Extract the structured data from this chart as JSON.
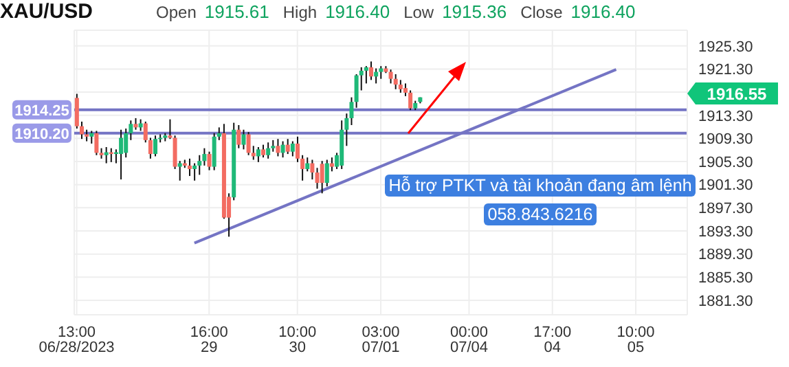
{
  "chart_data": {
    "type": "candlestick",
    "title": "XAU/USD",
    "categories": [
      "13:00\n06/28/2023",
      null,
      null,
      null,
      null,
      null,
      null,
      null,
      null,
      null,
      null,
      null,
      null,
      null,
      null,
      null,
      null,
      null,
      null,
      null,
      null,
      null,
      null,
      null,
      null,
      null,
      null,
      "16:00\n29",
      null,
      null,
      null,
      null,
      null,
      null,
      null,
      null,
      null,
      null,
      null,
      null,
      null,
      null,
      null,
      null,
      null,
      "10:00\n30",
      null,
      null,
      null,
      null,
      null,
      null,
      null,
      null,
      null,
      null,
      null,
      null,
      null,
      null,
      null,
      null,
      "03:00\n07/01",
      null,
      null,
      null,
      null,
      null,
      null,
      null,
      null,
      null,
      null,
      null,
      null,
      null,
      null,
      null,
      null,
      null,
      "00:00\n07/04",
      null,
      null,
      null,
      null,
      null,
      null,
      null,
      null,
      null,
      null,
      null,
      null,
      null,
      null,
      null,
      null,
      "17:00\n04",
      null,
      null,
      null,
      null,
      null,
      null,
      null,
      null,
      null,
      null,
      null,
      null,
      null,
      null,
      null,
      null,
      "10:00\n05",
      null,
      null,
      null,
      null,
      null,
      null,
      null,
      null,
      null,
      null
    ],
    "ohlc": [
      [
        1916.3,
        1917.0,
        1911.0,
        1911.4
      ],
      [
        1911.4,
        1912.2,
        1909.2,
        1910.0
      ],
      [
        1910.0,
        1910.8,
        1908.8,
        1909.6
      ],
      [
        1909.6,
        1910.6,
        1908.4,
        1910.2
      ],
      [
        1910.2,
        1910.6,
        1906.4,
        1906.8
      ],
      [
        1906.8,
        1907.6,
        1905.8,
        1906.4
      ],
      [
        1906.4,
        1907.8,
        1905.0,
        1906.9
      ],
      [
        1906.9,
        1907.6,
        1905.2,
        1906.6
      ],
      [
        1906.6,
        1907.4,
        1905.0,
        1906.9
      ],
      [
        1906.6,
        1910.8,
        1902.2,
        1909.4
      ],
      [
        1906.8,
        1911.0,
        1906.0,
        1910.2
      ],
      [
        1910.2,
        1912.4,
        1909.0,
        1911.8
      ],
      [
        1911.8,
        1912.8,
        1910.8,
        1911.2
      ],
      [
        1911.2,
        1912.6,
        1910.6,
        1911.9
      ],
      [
        1911.9,
        1912.2,
        1908.6,
        1909.0
      ],
      [
        1909.0,
        1909.4,
        1905.8,
        1906.6
      ],
      [
        1906.6,
        1909.8,
        1906.2,
        1909.2
      ],
      [
        1909.2,
        1910.0,
        1908.6,
        1909.4
      ],
      [
        1909.4,
        1910.2,
        1908.8,
        1909.8
      ],
      [
        1909.8,
        1912.6,
        1909.2,
        1909.4
      ],
      [
        1909.4,
        1909.8,
        1904.0,
        1904.4
      ],
      [
        1904.4,
        1905.4,
        1902.0,
        1905.0
      ],
      [
        1905.0,
        1905.6,
        1904.2,
        1904.6
      ],
      [
        1904.6,
        1905.8,
        1902.8,
        1904.0
      ],
      [
        1904.0,
        1905.0,
        1902.0,
        1904.6
      ],
      [
        1904.6,
        1906.4,
        1903.0,
        1905.4
      ],
      [
        1905.4,
        1907.6,
        1904.6,
        1906.6
      ],
      [
        1906.6,
        1907.0,
        1903.8,
        1904.4
      ],
      [
        1904.4,
        1910.2,
        1903.8,
        1909.6
      ],
      [
        1909.6,
        1911.2,
        1909.0,
        1910.2
      ],
      [
        1910.2,
        1911.8,
        1895.4,
        1895.6
      ],
      [
        1899.2,
        1899.8,
        1892.3,
        1895.6
      ],
      [
        1899.1,
        1912.0,
        1898.6,
        1910.8
      ],
      [
        1910.8,
        1911.6,
        1907.6,
        1908.2
      ],
      [
        1908.2,
        1910.8,
        1907.4,
        1910.0
      ],
      [
        1910.0,
        1910.4,
        1906.4,
        1906.8
      ],
      [
        1906.8,
        1908.0,
        1905.6,
        1906.2
      ],
      [
        1906.2,
        1907.8,
        1905.2,
        1907.4
      ],
      [
        1907.4,
        1908.2,
        1906.0,
        1906.4
      ],
      [
        1906.4,
        1908.6,
        1905.8,
        1907.6
      ],
      [
        1907.6,
        1909.0,
        1907.0,
        1908.0
      ],
      [
        1908.0,
        1909.2,
        1906.2,
        1906.8
      ],
      [
        1906.8,
        1908.8,
        1906.0,
        1908.2
      ],
      [
        1908.2,
        1909.2,
        1906.6,
        1907.0
      ],
      [
        1907.0,
        1908.8,
        1906.2,
        1908.4
      ],
      [
        1908.4,
        1909.6,
        1905.2,
        1905.8
      ],
      [
        1905.8,
        1906.4,
        1902.0,
        1904.0
      ],
      [
        1904.0,
        1906.0,
        1903.6,
        1905.0
      ],
      [
        1905.0,
        1905.6,
        1902.2,
        1903.4
      ],
      [
        1903.4,
        1904.2,
        1900.6,
        1901.6
      ],
      [
        1904.9,
        1905.4,
        1899.8,
        1901.6
      ],
      [
        1901.6,
        1905.6,
        1901.0,
        1905.0
      ],
      [
        1905.0,
        1906.0,
        1903.6,
        1904.4
      ],
      [
        1904.4,
        1906.8,
        1904.0,
        1906.4
      ],
      [
        1904.6,
        1912.4,
        1904.0,
        1910.8
      ],
      [
        1910.8,
        1913.6,
        1908.0,
        1912.8
      ],
      [
        1912.8,
        1916.4,
        1911.6,
        1915.6
      ],
      [
        1915.6,
        1920.4,
        1914.6,
        1920.2
      ],
      [
        1920.2,
        1921.6,
        1917.6,
        1921.0
      ],
      [
        1921.0,
        1921.8,
        1918.8,
        1921.6
      ],
      [
        1921.6,
        1922.6,
        1919.4,
        1920.0
      ],
      [
        1920.0,
        1921.4,
        1918.8,
        1920.8
      ],
      [
        1920.8,
        1921.8,
        1919.6,
        1921.4
      ],
      [
        1921.4,
        1921.8,
        1920.6,
        1920.8
      ],
      [
        1920.8,
        1921.2,
        1918.8,
        1919.6
      ],
      [
        1919.6,
        1920.4,
        1917.8,
        1918.6
      ],
      [
        1918.6,
        1919.4,
        1917.2,
        1917.8
      ],
      [
        1918.0,
        1918.8,
        1916.6,
        1917.2
      ],
      [
        1917.2,
        1917.6,
        1914.2,
        1914.5
      ],
      [
        1914.5,
        1915.8,
        1914.2,
        1915.4
      ],
      [
        1915.61,
        1916.4,
        1915.36,
        1916.4
      ],
      null,
      null,
      null,
      null,
      null,
      null,
      null,
      null,
      null,
      null,
      null,
      null,
      null,
      null,
      null,
      null,
      null,
      null,
      null,
      null,
      null,
      null,
      null,
      null,
      null,
      null,
      null,
      null,
      null,
      null,
      null,
      null,
      null,
      null,
      null,
      null,
      null,
      null,
      null,
      null,
      null,
      null,
      null,
      null,
      null,
      null,
      null,
      null,
      null,
      null,
      null,
      null,
      null,
      null
    ],
    "series": [
      {
        "type": "line",
        "color": "#7474c4",
        "values": [
          null,
          null,
          null,
          null,
          null,
          null,
          null,
          null,
          null,
          null,
          null,
          null,
          null,
          null,
          null,
          null,
          null,
          null,
          null,
          null,
          null,
          null,
          null,
          null,
          1891.2,
          null,
          null,
          null,
          null,
          null,
          null,
          null,
          null,
          null,
          null,
          null,
          null,
          null,
          null,
          null,
          null,
          null,
          null,
          null,
          null,
          null,
          null,
          null,
          null,
          null,
          null,
          null,
          null,
          null,
          null,
          null,
          null,
          null,
          null,
          null,
          null,
          null,
          null,
          null,
          null,
          null,
          null,
          null,
          null,
          null,
          null,
          null,
          null,
          null,
          null,
          null,
          null,
          null,
          null,
          null,
          null,
          null,
          null,
          null,
          null,
          null,
          null,
          null,
          null,
          null,
          null,
          null,
          null,
          null,
          null,
          null,
          null,
          null,
          null,
          null,
          null,
          null,
          null,
          null,
          null,
          null,
          null,
          null,
          null,
          null,
          1921.2,
          null,
          null,
          null,
          null,
          null,
          null,
          null,
          null,
          null,
          null,
          null,
          null,
          null,
          null
        ]
      }
    ],
    "ylim": [
      1878.8,
      1928.0
    ],
    "yticks": [
      {
        "value": 1881.3,
        "label": "1881.30"
      },
      {
        "value": 1885.3,
        "label": "1885.30"
      },
      {
        "value": 1889.3,
        "label": "1889.30"
      },
      {
        "value": 1893.3,
        "label": "1893.30"
      },
      {
        "value": 1897.3,
        "label": "1897.30"
      },
      {
        "value": 1901.3,
        "label": "1901.30"
      },
      {
        "value": 1905.3,
        "label": "1905.30"
      },
      {
        "value": 1909.3,
        "label": "1909.30"
      },
      {
        "value": 1913.3,
        "label": "1913.30"
      },
      {
        "value": 1917.3,
        "label": null
      },
      {
        "value": 1921.3,
        "label": "1921.30"
      },
      {
        "value": 1925.3,
        "label": "1925.30"
      }
    ],
    "ref_lines": [
      {
        "axis": "y",
        "value": 1914.25,
        "label": "1914.25",
        "color": "#7474c4"
      },
      {
        "axis": "y",
        "value": 1910.2,
        "label": "1910.20",
        "color": "#7474c4"
      }
    ],
    "annotations": [
      "Open",
      "1915.61",
      "High",
      "1916.40",
      "Low",
      "1915.36",
      "Close",
      "1916.40",
      "1916.55",
      "Hỗ trợ PTKT và tài khoản đang âm lệnh",
      "058.843.6216"
    ],
    "grid": true,
    "legend": false
  }
}
